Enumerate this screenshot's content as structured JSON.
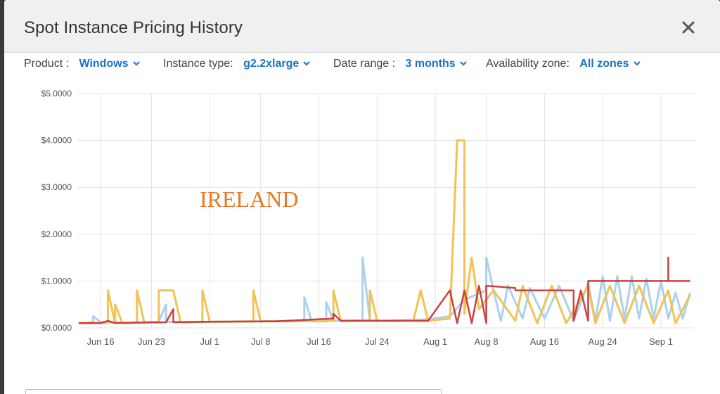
{
  "modal": {
    "title": "Spot Instance Pricing History",
    "close_icon": "close-icon"
  },
  "filters": {
    "product": {
      "label": "Product :",
      "value": "Windows"
    },
    "instance_type": {
      "label": "Instance type:",
      "value": "g2.2xlarge"
    },
    "date_range": {
      "label": "Date range :",
      "value": "3 months"
    },
    "availability_zone": {
      "label": "Availability zone:",
      "value": "All zones"
    },
    "dropdown_icon": "chevron-down-icon",
    "accent_color": "#1a73c7"
  },
  "chart_data": {
    "type": "line",
    "annotation": "IRELAND",
    "annotation_color": "#e8792a",
    "ylim": [
      0,
      5
    ],
    "y_ticks": [
      {
        "value": 0,
        "label": "$0.0000"
      },
      {
        "value": 1,
        "label": "$1.0000"
      },
      {
        "value": 2,
        "label": "$2.0000"
      },
      {
        "value": 3,
        "label": "$3.0000"
      },
      {
        "value": 4,
        "label": "$4.0000"
      },
      {
        "value": 5,
        "label": "$5.0000"
      }
    ],
    "xlim": [
      "2016-06-16",
      "2016-09-05"
    ],
    "x_ticks": [
      {
        "date": "2016-06-16",
        "label": "Jun 16"
      },
      {
        "date": "2016-06-23",
        "label": "Jun 23"
      },
      {
        "date": "2016-07-01",
        "label": "Jul 1"
      },
      {
        "date": "2016-07-08",
        "label": "Jul 8"
      },
      {
        "date": "2016-07-16",
        "label": "Jul 16"
      },
      {
        "date": "2016-07-24",
        "label": "Jul 24"
      },
      {
        "date": "2016-08-01",
        "label": "Aug 1"
      },
      {
        "date": "2016-08-08",
        "label": "Aug 8"
      },
      {
        "date": "2016-08-16",
        "label": "Aug 16"
      },
      {
        "date": "2016-08-24",
        "label": "Aug 24"
      },
      {
        "date": "2016-09-01",
        "label": "Sep 1"
      }
    ],
    "grid": true,
    "series": [
      {
        "color": "#a8cfee",
        "points": [
          [
            "2016-06-13",
            0.1
          ],
          [
            "2016-06-15",
            0.12
          ],
          [
            "2016-06-15",
            0.25
          ],
          [
            "2016-06-16",
            0.12
          ],
          [
            "2016-06-20",
            0.11
          ],
          [
            "2016-06-24",
            0.13
          ],
          [
            "2016-06-25",
            0.5
          ],
          [
            "2016-06-25",
            0.13
          ],
          [
            "2016-06-28",
            0.12
          ],
          [
            "2016-07-03",
            0.13
          ],
          [
            "2016-07-08",
            0.14
          ],
          [
            "2016-07-14",
            0.14
          ],
          [
            "2016-07-14",
            0.65
          ],
          [
            "2016-07-15",
            0.14
          ],
          [
            "2016-07-17",
            0.14
          ],
          [
            "2016-07-17",
            0.55
          ],
          [
            "2016-07-18",
            0.15
          ],
          [
            "2016-07-22",
            0.16
          ],
          [
            "2016-07-22",
            1.5
          ],
          [
            "2016-07-23",
            0.16
          ],
          [
            "2016-07-26",
            0.15
          ],
          [
            "2016-07-31",
            0.18
          ],
          [
            "2016-08-03",
            0.25
          ],
          [
            "2016-08-05",
            0.6
          ],
          [
            "2016-08-08",
            0.8
          ],
          [
            "2016-08-08",
            1.5
          ],
          [
            "2016-08-09",
            0.8
          ],
          [
            "2016-08-10",
            0.15
          ],
          [
            "2016-08-11",
            0.9
          ],
          [
            "2016-08-13",
            0.2
          ],
          [
            "2016-08-14",
            0.85
          ],
          [
            "2016-08-16",
            0.2
          ],
          [
            "2016-08-18",
            0.9
          ],
          [
            "2016-08-20",
            0.15
          ],
          [
            "2016-08-22",
            0.95
          ],
          [
            "2016-08-23",
            0.15
          ],
          [
            "2016-08-24",
            1.1
          ],
          [
            "2016-08-25",
            0.15
          ],
          [
            "2016-08-26",
            1.1
          ],
          [
            "2016-08-27",
            0.2
          ],
          [
            "2016-08-28",
            1.1
          ],
          [
            "2016-08-29",
            0.2
          ],
          [
            "2016-08-30",
            1.05
          ],
          [
            "2016-08-31",
            0.2
          ],
          [
            "2016-09-01",
            1.0
          ],
          [
            "2016-09-02",
            0.2
          ],
          [
            "2016-09-03",
            0.75
          ],
          [
            "2016-09-04",
            0.2
          ],
          [
            "2016-09-05",
            0.75
          ]
        ]
      },
      {
        "color": "#f0c04c",
        "points": [
          [
            "2016-06-13",
            0.1
          ],
          [
            "2016-06-17",
            0.11
          ],
          [
            "2016-06-17",
            0.8
          ],
          [
            "2016-06-18",
            0.1
          ],
          [
            "2016-06-18",
            0.5
          ],
          [
            "2016-06-19",
            0.1
          ],
          [
            "2016-06-21",
            0.12
          ],
          [
            "2016-06-21",
            0.8
          ],
          [
            "2016-06-22",
            0.12
          ],
          [
            "2016-06-24",
            0.12
          ],
          [
            "2016-06-24",
            0.8
          ],
          [
            "2016-06-26",
            0.8
          ],
          [
            "2016-06-27",
            0.12
          ],
          [
            "2016-06-30",
            0.13
          ],
          [
            "2016-06-30",
            0.8
          ],
          [
            "2016-07-01",
            0.13
          ],
          [
            "2016-07-07",
            0.14
          ],
          [
            "2016-07-07",
            0.8
          ],
          [
            "2016-07-08",
            0.14
          ],
          [
            "2016-07-18",
            0.15
          ],
          [
            "2016-07-18",
            0.8
          ],
          [
            "2016-07-19",
            0.15
          ],
          [
            "2016-07-23",
            0.16
          ],
          [
            "2016-07-23",
            0.8
          ],
          [
            "2016-07-24",
            0.15
          ],
          [
            "2016-07-29",
            0.17
          ],
          [
            "2016-07-30",
            0.8
          ],
          [
            "2016-07-31",
            0.15
          ],
          [
            "2016-08-03",
            0.2
          ],
          [
            "2016-08-04",
            4.0
          ],
          [
            "2016-08-05",
            4.0
          ],
          [
            "2016-08-05",
            0.3
          ],
          [
            "2016-08-06",
            1.5
          ],
          [
            "2016-08-07",
            0.4
          ],
          [
            "2016-08-09",
            0.8
          ],
          [
            "2016-08-12",
            0.15
          ],
          [
            "2016-08-13",
            0.9
          ],
          [
            "2016-08-15",
            0.1
          ],
          [
            "2016-08-17",
            0.9
          ],
          [
            "2016-08-19",
            0.1
          ],
          [
            "2016-08-22",
            0.9
          ],
          [
            "2016-08-23",
            0.1
          ],
          [
            "2016-08-25",
            0.9
          ],
          [
            "2016-08-27",
            0.1
          ],
          [
            "2016-08-29",
            0.9
          ],
          [
            "2016-08-31",
            0.1
          ],
          [
            "2016-09-02",
            0.8
          ],
          [
            "2016-09-03",
            0.1
          ],
          [
            "2016-09-05",
            0.7
          ]
        ]
      },
      {
        "color": "#c9373a",
        "points": [
          [
            "2016-06-13",
            0.1
          ],
          [
            "2016-06-16",
            0.1
          ],
          [
            "2016-06-17",
            0.15
          ],
          [
            "2016-06-18",
            0.1
          ],
          [
            "2016-06-25",
            0.12
          ],
          [
            "2016-06-26",
            0.4
          ],
          [
            "2016-06-26",
            0.12
          ],
          [
            "2016-07-01",
            0.13
          ],
          [
            "2016-07-10",
            0.14
          ],
          [
            "2016-07-18",
            0.2
          ],
          [
            "2016-07-18",
            0.3
          ],
          [
            "2016-07-19",
            0.15
          ],
          [
            "2016-07-31",
            0.15
          ],
          [
            "2016-08-03",
            0.8
          ],
          [
            "2016-08-04",
            0.1
          ],
          [
            "2016-08-05",
            0.8
          ],
          [
            "2016-08-06",
            0.1
          ],
          [
            "2016-08-07",
            0.9
          ],
          [
            "2016-08-08",
            0.1
          ],
          [
            "2016-08-08",
            0.9
          ],
          [
            "2016-08-12",
            0.85
          ],
          [
            "2016-08-12",
            0.8
          ],
          [
            "2016-08-20",
            0.8
          ],
          [
            "2016-08-20",
            0.15
          ],
          [
            "2016-08-21",
            0.8
          ],
          [
            "2016-08-22",
            0.15
          ],
          [
            "2016-08-22",
            1.0
          ],
          [
            "2016-09-02",
            1.0
          ],
          [
            "2016-09-02",
            1.5
          ],
          [
            "2016-09-02",
            1.0
          ],
          [
            "2016-09-05",
            1.0
          ]
        ]
      }
    ]
  }
}
